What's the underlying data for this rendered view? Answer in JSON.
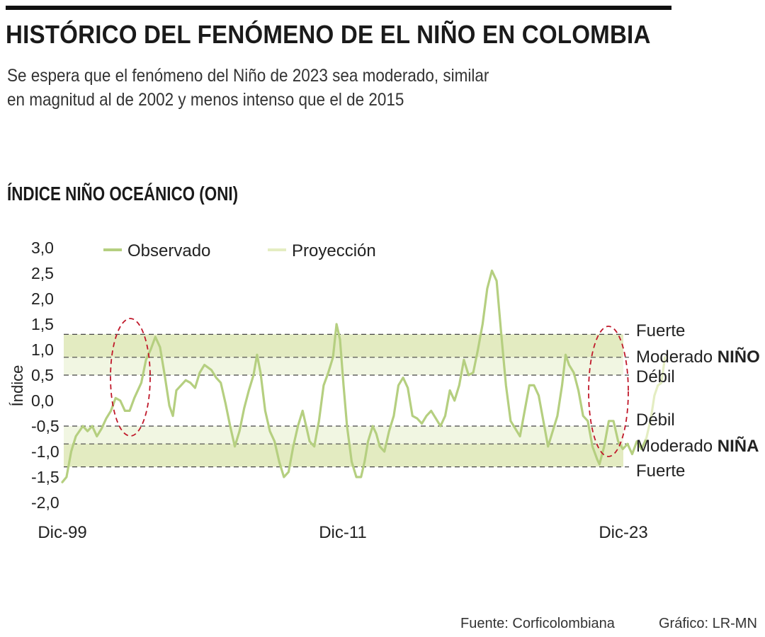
{
  "header": {
    "title": "HISTÓRICO DEL FENÓMENO DE EL NIÑO EN COLOMBIA",
    "subtitle_lines": [
      "Se espera que el fenómeno del Niño de 2023 sea moderado, similar",
      "en magnitud al de 2002 y menos intenso que el de 2015"
    ],
    "section_title": "ÍNDICE NIÑO OCEÁNICO (ONI)"
  },
  "footer": {
    "source": "Fuente: Corficolombiana",
    "credit": "Gráfico: LR-MN"
  },
  "colors": {
    "observed": "#b5cf80",
    "projection": "#e4edc2",
    "band_strong": "#e3ebc1",
    "band_moderate": "#f1f6e2",
    "highlight_ellipse": "#c0182a",
    "dash_line": "#444444"
  },
  "chart_data": {
    "type": "line",
    "ylabel": "Índice",
    "ylim": [
      -2.0,
      3.0
    ],
    "y_ticks": [
      "3,0",
      "2,5",
      "2,0",
      "1,5",
      "1,0",
      "0,5",
      "0,0",
      "-0,5",
      "-1,0",
      "-1,5",
      "-2,0"
    ],
    "y_tick_values": [
      3.0,
      2.5,
      2.0,
      1.5,
      1.0,
      0.5,
      0.0,
      -0.5,
      -1.0,
      -1.5,
      -2.0
    ],
    "xlim": [
      1999.92,
      2023.92
    ],
    "x_ticks": [
      "Dic-99",
      "Dic-11",
      "Dic-23"
    ],
    "x_tick_values": [
      1999.92,
      2011.92,
      2023.92
    ],
    "legend": {
      "placement": "top",
      "entries": [
        "Observado",
        "Proyección"
      ]
    },
    "thresholds": [
      {
        "value": 1.3,
        "label": "Fuerte"
      },
      {
        "value": 0.85,
        "label": "Moderado",
        "strong": "NIÑO"
      },
      {
        "value": 0.5,
        "label": "Débil"
      },
      {
        "value": -0.5,
        "label": "Débil"
      },
      {
        "value": -0.85,
        "label": "Moderado",
        "strong": "NIÑA"
      },
      {
        "value": -1.3,
        "label": "Fuerte"
      }
    ],
    "series": [
      {
        "name": "Observado",
        "points": [
          [
            1999.92,
            -1.6
          ],
          [
            2000.1,
            -1.5
          ],
          [
            2000.3,
            -1.0
          ],
          [
            2000.5,
            -0.7
          ],
          [
            2000.8,
            -0.5
          ],
          [
            2001.0,
            -0.6
          ],
          [
            2001.2,
            -0.5
          ],
          [
            2001.4,
            -0.7
          ],
          [
            2001.6,
            -0.55
          ],
          [
            2001.8,
            -0.35
          ],
          [
            2002.0,
            -0.2
          ],
          [
            2002.2,
            0.05
          ],
          [
            2002.4,
            0.0
          ],
          [
            2002.6,
            -0.2
          ],
          [
            2002.8,
            -0.2
          ],
          [
            2003.0,
            0.05
          ],
          [
            2003.3,
            0.35
          ],
          [
            2003.5,
            0.8
          ],
          [
            2003.7,
            1.0
          ],
          [
            2003.9,
            1.25
          ],
          [
            2004.1,
            1.05
          ],
          [
            2004.3,
            0.5
          ],
          [
            2004.5,
            -0.1
          ],
          [
            2004.65,
            -0.3
          ],
          [
            2004.8,
            0.2
          ],
          [
            2005.0,
            0.3
          ],
          [
            2005.2,
            0.4
          ],
          [
            2005.4,
            0.35
          ],
          [
            2005.6,
            0.25
          ],
          [
            2005.8,
            0.55
          ],
          [
            2006.0,
            0.7
          ],
          [
            2006.3,
            0.6
          ],
          [
            2006.5,
            0.45
          ],
          [
            2006.7,
            0.35
          ],
          [
            2006.9,
            -0.05
          ],
          [
            2007.1,
            -0.5
          ],
          [
            2007.3,
            -0.9
          ],
          [
            2007.5,
            -0.6
          ],
          [
            2007.7,
            -0.15
          ],
          [
            2007.9,
            0.2
          ],
          [
            2008.1,
            0.5
          ],
          [
            2008.25,
            0.9
          ],
          [
            2008.4,
            0.55
          ],
          [
            2008.6,
            -0.2
          ],
          [
            2008.8,
            -0.6
          ],
          [
            2009.0,
            -0.8
          ],
          [
            2009.2,
            -1.2
          ],
          [
            2009.4,
            -1.5
          ],
          [
            2009.6,
            -1.4
          ],
          [
            2009.8,
            -0.9
          ],
          [
            2010.0,
            -0.5
          ],
          [
            2010.2,
            -0.2
          ],
          [
            2010.35,
            -0.5
          ],
          [
            2010.5,
            -0.8
          ],
          [
            2010.7,
            -0.9
          ],
          [
            2010.9,
            -0.4
          ],
          [
            2011.1,
            0.3
          ],
          [
            2011.3,
            0.55
          ],
          [
            2011.5,
            0.85
          ],
          [
            2011.65,
            1.5
          ],
          [
            2011.8,
            1.2
          ],
          [
            2011.95,
            0.3
          ],
          [
            2012.1,
            -0.5
          ],
          [
            2012.3,
            -1.2
          ],
          [
            2012.5,
            -1.5
          ],
          [
            2012.7,
            -1.5
          ],
          [
            2012.85,
            -1.2
          ],
          [
            2013.0,
            -0.8
          ],
          [
            2013.2,
            -0.5
          ],
          [
            2013.35,
            -0.65
          ],
          [
            2013.5,
            -0.9
          ],
          [
            2013.7,
            -1.0
          ],
          [
            2013.9,
            -0.6
          ],
          [
            2014.1,
            -0.3
          ],
          [
            2014.3,
            0.3
          ],
          [
            2014.5,
            0.45
          ],
          [
            2014.7,
            0.25
          ],
          [
            2014.9,
            -0.3
          ],
          [
            2015.1,
            -0.35
          ],
          [
            2015.3,
            -0.45
          ],
          [
            2015.5,
            -0.3
          ],
          [
            2015.7,
            -0.2
          ],
          [
            2015.9,
            -0.35
          ],
          [
            2016.1,
            -0.5
          ],
          [
            2016.3,
            -0.3
          ],
          [
            2016.5,
            0.2
          ],
          [
            2016.7,
            0.0
          ],
          [
            2016.9,
            0.3
          ],
          [
            2017.1,
            0.8
          ],
          [
            2017.3,
            0.5
          ],
          [
            2017.5,
            0.55
          ],
          [
            2017.7,
            1.0
          ],
          [
            2017.9,
            1.5
          ],
          [
            2018.1,
            2.2
          ],
          [
            2018.3,
            2.55
          ],
          [
            2018.5,
            2.35
          ],
          [
            2018.7,
            1.3
          ],
          [
            2018.9,
            0.3
          ],
          [
            2019.1,
            -0.4
          ],
          [
            2019.3,
            -0.55
          ],
          [
            2019.5,
            -0.7
          ],
          [
            2019.7,
            -0.2
          ],
          [
            2019.9,
            0.3
          ],
          [
            2020.1,
            0.3
          ],
          [
            2020.3,
            0.1
          ],
          [
            2020.5,
            -0.4
          ],
          [
            2020.7,
            -0.9
          ],
          [
            2020.9,
            -0.6
          ],
          [
            2021.1,
            -0.3
          ],
          [
            2021.3,
            0.3
          ],
          [
            2021.45,
            0.9
          ],
          [
            2021.6,
            0.7
          ],
          [
            2021.8,
            0.55
          ],
          [
            2022.0,
            0.2
          ],
          [
            2022.2,
            -0.3
          ],
          [
            2022.4,
            -0.4
          ],
          [
            2022.6,
            -0.9
          ],
          [
            2022.8,
            -1.15
          ],
          [
            2022.9,
            -1.25
          ],
          [
            2023.1,
            -0.9
          ],
          [
            2023.3,
            -0.4
          ],
          [
            2023.5,
            -0.4
          ],
          [
            2023.7,
            -0.8
          ],
          [
            2023.9,
            -0.95
          ],
          [
            2024.1,
            -0.85
          ],
          [
            2024.3,
            -1.05
          ],
          [
            2024.5,
            -0.8
          ],
          [
            2024.7,
            -0.95
          ],
          [
            2024.9,
            -0.75
          ]
        ]
      },
      {
        "name": "Proyección",
        "points": [
          [
            2024.9,
            -0.75
          ],
          [
            2025.1,
            -0.35
          ],
          [
            2025.25,
            0.1
          ],
          [
            2025.4,
            0.3
          ],
          [
            2025.55,
            0.35
          ],
          [
            2025.7,
            0.85
          ]
        ]
      }
    ]
  }
}
